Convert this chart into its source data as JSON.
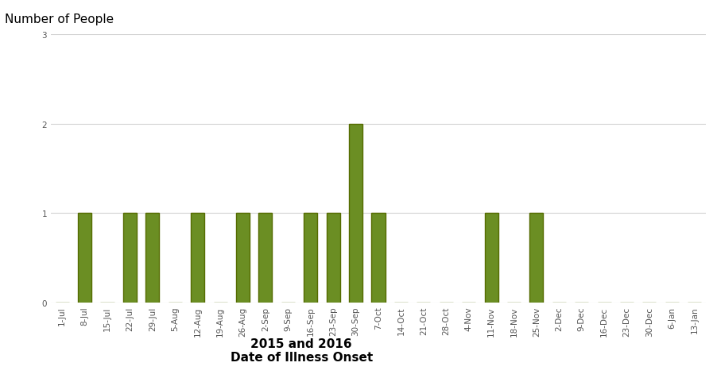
{
  "title_ylabel": "Number of People",
  "xlabel_line1": "2015 and 2016",
  "xlabel_line2": "Date of Illness Onset",
  "ylim": [
    0,
    3
  ],
  "yticks": [
    0,
    1,
    2,
    3
  ],
  "bar_color": "#6b8e23",
  "bar_edge_color": "#556b00",
  "bar_width": 0.6,
  "background_color": "#ffffff",
  "tick_labels": [
    "1-Jul",
    "8-Jul",
    "15-Jul",
    "22-Jul",
    "29-Jul",
    "5-Aug",
    "12-Aug",
    "19-Aug",
    "26-Aug",
    "2-Sep",
    "9-Sep",
    "16-Sep",
    "23-Sep",
    "30-Sep",
    "7-Oct",
    "14-Oct",
    "21-Oct",
    "28-Oct",
    "4-Nov",
    "11-Nov",
    "18-Nov",
    "25-Nov",
    "2-Dec",
    "9-Dec",
    "16-Dec",
    "23-Dec",
    "30-Dec",
    "6-Jan",
    "13-Jan"
  ],
  "values": [
    0,
    1,
    0,
    1,
    1,
    0,
    1,
    0,
    1,
    1,
    0,
    1,
    1,
    2,
    1,
    0,
    0,
    0,
    0,
    1,
    0,
    1,
    0,
    0,
    0,
    0,
    0,
    0,
    0
  ],
  "grid_color": "#d3d3d3",
  "tick_fontsize": 7.5,
  "ylabel_fontsize": 11,
  "xlabel_fontsize": 11
}
